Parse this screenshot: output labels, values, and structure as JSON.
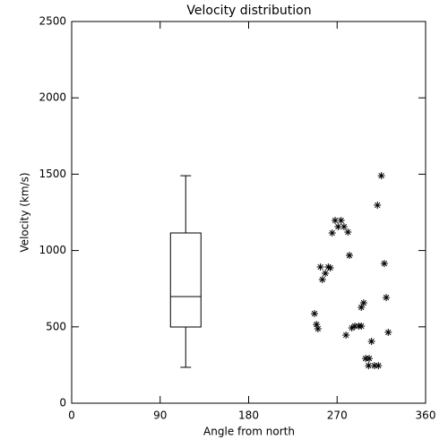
{
  "chart_data": {
    "type": "scatter",
    "title": "Velocity distribution",
    "x_label": "Angle from north",
    "y_label": "Velocity (km/s)",
    "xlim": [
      0,
      360
    ],
    "xticks": [
      0,
      90,
      180,
      270,
      360
    ],
    "ylim": [
      0,
      2500
    ],
    "yticks": [
      0,
      500,
      1000,
      1500,
      2000,
      2500
    ],
    "color": "#000000",
    "x": [
      247,
      249,
      250.5,
      253,
      255,
      258,
      261,
      263,
      265,
      268,
      271,
      274,
      277,
      281,
      279,
      282.5,
      285,
      288,
      292,
      294.6,
      294.6,
      297,
      299,
      302,
      302.6,
      305,
      308,
      312,
      311,
      315,
      318,
      320,
      322
    ],
    "y": [
      587,
      516,
      487,
      892,
      810,
      851,
      892,
      886,
      1115,
      1197,
      1156,
      1197,
      1156,
      1121,
      446,
      968,
      493,
      505,
      505,
      505,
      628,
      657,
      293,
      246,
      293,
      405,
      246,
      246,
      1297,
      1490,
      915,
      692,
      464
    ],
    "box": {
      "x": 116,
      "min": 235,
      "q1": 499,
      "median": 698,
      "q3": 1115,
      "max": 1490
    }
  }
}
